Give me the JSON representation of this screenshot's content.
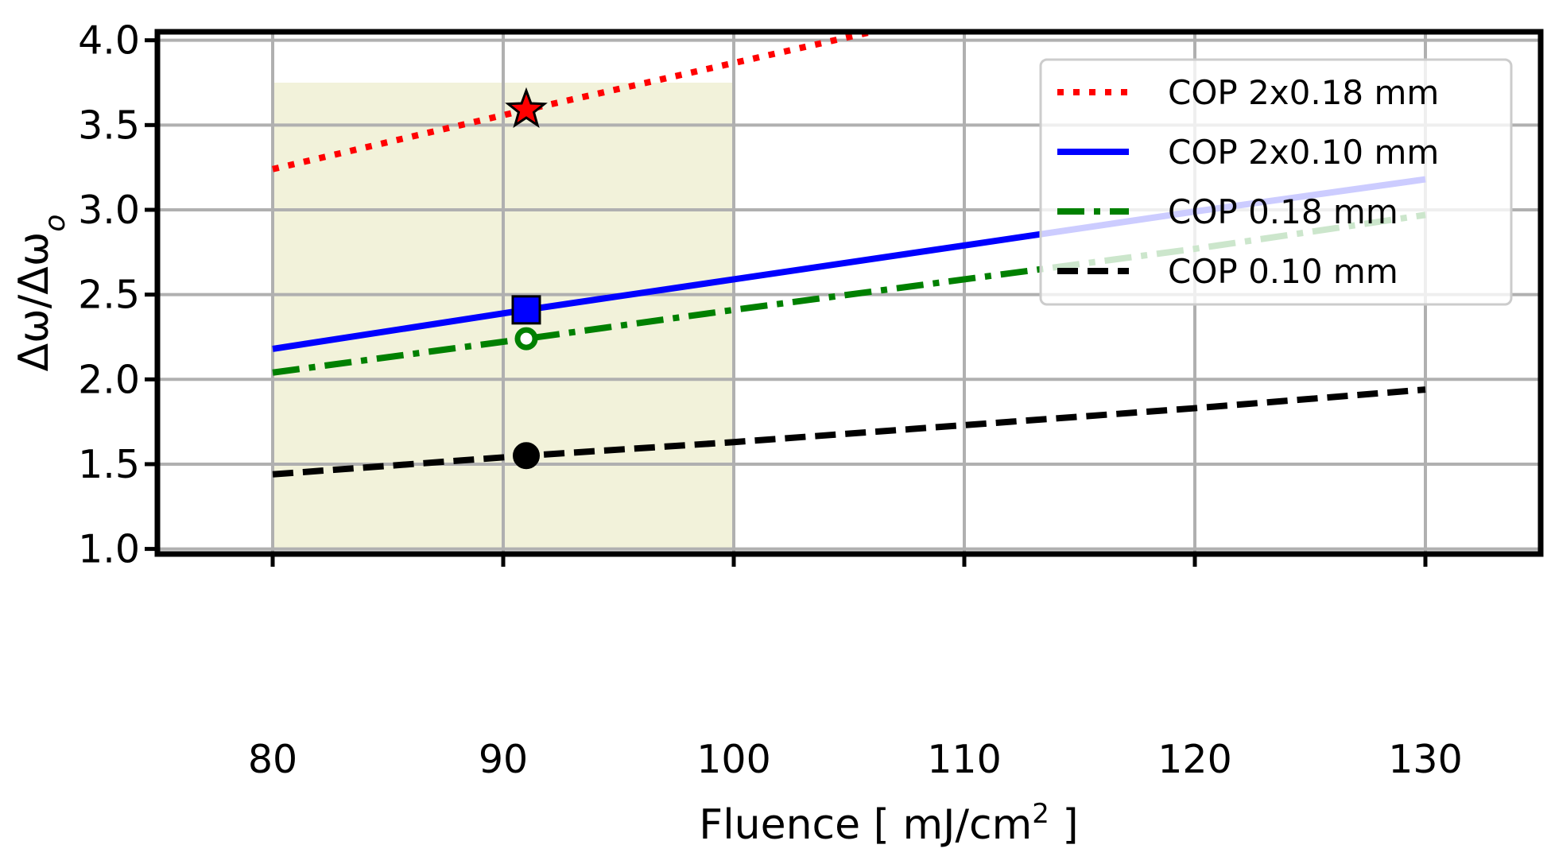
{
  "chart_data": {
    "type": "line",
    "xlabel": "Fluence [ mJ/cm",
    "xlabel_sup": "2",
    "xlabel_end": " ]",
    "ylabel": "Δω/Δω",
    "ylabel_sub": "o",
    "xlim": [
      75,
      135
    ],
    "ylim": [
      0.97,
      4.05
    ],
    "xticks": [
      80,
      90,
      100,
      110,
      120,
      130
    ],
    "yticks": [
      1.0,
      1.5,
      2.0,
      2.5,
      3.0,
      3.5,
      4.0
    ],
    "xtick_labels": [
      "80",
      "90",
      "100",
      "110",
      "120",
      "130"
    ],
    "ytick_labels": [
      "1.0",
      "1.5",
      "2.0",
      "2.5",
      "3.0",
      "3.5",
      "4.0"
    ],
    "grid": true,
    "legend_position": "top-right",
    "shaded_region": {
      "x": [
        80,
        100
      ],
      "y": [
        1.0,
        3.75
      ],
      "color": "#f2f2da"
    },
    "series": [
      {
        "name": "COP 2x0.18 mm",
        "style": "dotted",
        "color": "#ff0000",
        "x": [
          80,
          91,
          106
        ],
        "y": [
          3.24,
          3.59,
          4.05
        ],
        "marker": {
          "shape": "star",
          "x": 91,
          "y": 3.59,
          "fill": "#ff0000"
        }
      },
      {
        "name": "COP 2x0.10 mm",
        "style": "solid",
        "color": "#0000ff",
        "x": [
          80,
          91,
          100,
          110,
          120,
          130
        ],
        "y": [
          2.18,
          2.41,
          2.59,
          2.79,
          2.99,
          3.18
        ],
        "marker": {
          "shape": "square",
          "x": 91,
          "y": 2.41,
          "fill": "#0000ff"
        }
      },
      {
        "name": "COP 0.18 mm",
        "style": "dashdot",
        "color": "#008000",
        "x": [
          80,
          91,
          100,
          110,
          120,
          130
        ],
        "y": [
          2.04,
          2.24,
          2.41,
          2.59,
          2.77,
          2.97
        ],
        "marker": {
          "shape": "open-circle",
          "x": 91,
          "y": 2.24,
          "fill": "#ffffff"
        }
      },
      {
        "name": "COP 0.10 mm",
        "style": "dashed",
        "color": "#000000",
        "x": [
          80,
          91,
          100,
          110,
          120,
          130
        ],
        "y": [
          1.44,
          1.55,
          1.63,
          1.73,
          1.83,
          1.94
        ],
        "marker": {
          "shape": "circle",
          "x": 91,
          "y": 1.55,
          "fill": "#000000"
        }
      }
    ]
  }
}
